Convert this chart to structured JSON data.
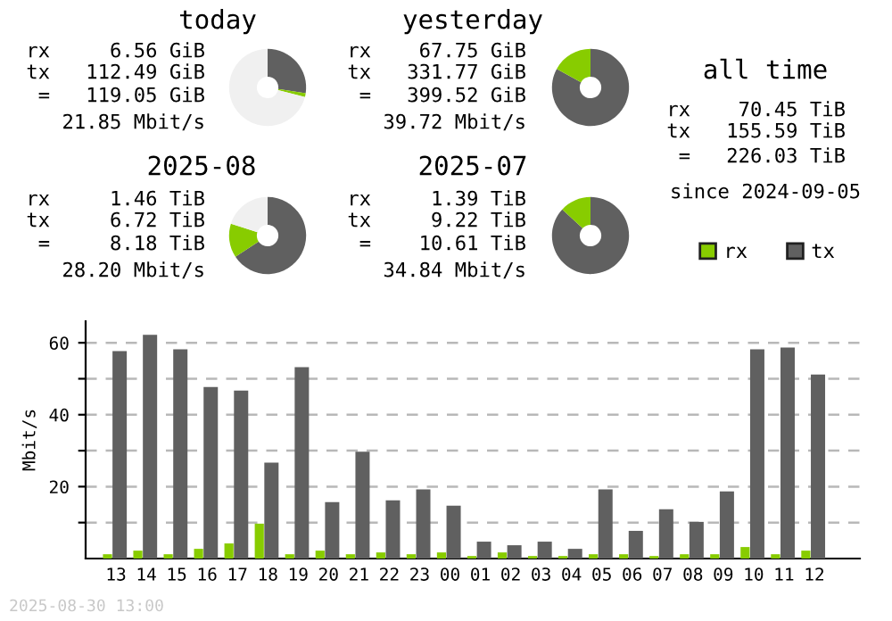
{
  "chart_data": [
    {
      "type": "donut",
      "title": "today",
      "categories": [
        null,
        null,
        null
      ],
      "values": [
        27.4,
        1.6,
        71.0
      ],
      "colors": [
        "#606060",
        "#88cc00",
        "#f0f0f0"
      ],
      "annotations": [
        "rx     6.56 GiB",
        "tx   112.49 GiB",
        "=   119.05 GiB",
        "21.85 Mbit/s"
      ]
    },
    {
      "type": "donut",
      "title": "yesterday",
      "categories": [
        null,
        null
      ],
      "values": [
        83.0,
        17.0
      ],
      "colors": [
        "#606060",
        "#88cc00"
      ],
      "annotations": [
        "rx    67.75 GiB",
        "tx   331.77 GiB",
        "=   399.52 GiB",
        "39.72 Mbit/s"
      ]
    },
    {
      "type": "other",
      "title": "all time",
      "annotations": [
        "rx    70.45 TiB",
        "tx   155.59 TiB",
        "=   226.03 TiB",
        "since 2024-09-05"
      ]
    },
    {
      "type": "donut",
      "title": "2025-08",
      "categories": [
        null,
        null,
        null
      ],
      "values": [
        65.7,
        14.3,
        20.0
      ],
      "colors": [
        "#606060",
        "#88cc00",
        "#f0f0f0"
      ],
      "annotations": [
        "rx     1.46 TiB",
        "tx     6.72 TiB",
        "=     8.18 TiB",
        "28.20 Mbit/s"
      ]
    },
    {
      "type": "donut",
      "title": "2025-07",
      "categories": [
        null,
        null
      ],
      "values": [
        86.9,
        13.1
      ],
      "colors": [
        "#606060",
        "#88cc00"
      ],
      "annotations": [
        "rx     1.39 TiB",
        "tx     9.22 TiB",
        "=    10.61 TiB",
        "34.84 Mbit/s"
      ]
    },
    {
      "type": "bar",
      "ylabel": "Mbit/s",
      "legend": "top right",
      "grid": "y",
      "categories": [
        "13",
        "14",
        "15",
        "16",
        "17",
        "18",
        "19",
        "20",
        "21",
        "22",
        "23",
        "00",
        "01",
        "02",
        "03",
        "04",
        "05",
        "06",
        "07",
        "08",
        "09",
        "10",
        "11",
        "12"
      ],
      "ylim": [
        0,
        66
      ],
      "yticks": [
        {
          "value": 10,
          "label": null
        },
        20,
        {
          "value": 30,
          "label": null
        },
        40,
        {
          "value": 50,
          "label": null
        },
        60
      ],
      "series": [
        {
          "name": "rx",
          "color": "#88cc00",
          "values": [
            1.2,
            2.2,
            1.2,
            2.7,
            4.2,
            9.7,
            1.2,
            2.2,
            1.2,
            1.7,
            1.2,
            1.7,
            0.7,
            1.7,
            0.7,
            0.7,
            1.2,
            1.2,
            0.7,
            1.2,
            1.2,
            3.2,
            1.2,
            2.2
          ]
        },
        {
          "name": "tx",
          "color": "#606060",
          "values": [
            57.7,
            62.2,
            58.2,
            47.7,
            46.7,
            26.7,
            53.2,
            15.7,
            29.7,
            16.2,
            19.2,
            14.7,
            4.7,
            3.7,
            4.7,
            2.7,
            19.2,
            7.7,
            13.7,
            10.2,
            18.7,
            58.2,
            58.7,
            51.2
          ]
        }
      ],
      "annotations": [
        "2025-08-30 13:00"
      ]
    }
  ]
}
